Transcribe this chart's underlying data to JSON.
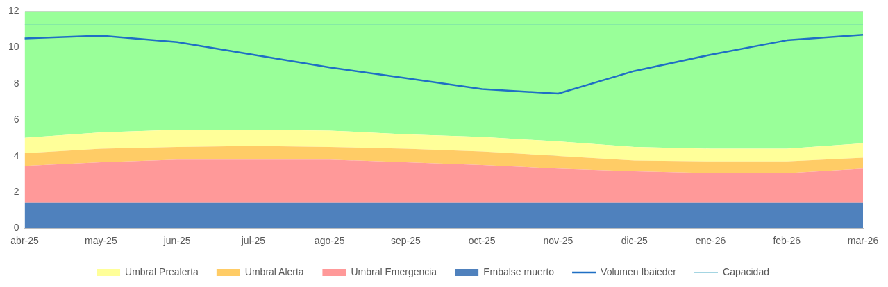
{
  "chart_data": {
    "type": "area",
    "stacked": true,
    "categories": [
      "abr-25",
      "may-25",
      "jun-25",
      "jul-25",
      "ago-25",
      "sep-25",
      "oct-25",
      "nov-25",
      "dic-25",
      "ene-26",
      "feb-26",
      "mar-26"
    ],
    "ylim": [
      0,
      12
    ],
    "yticks": [
      0,
      2,
      4,
      6,
      8,
      10,
      12
    ],
    "grid": "y",
    "legend": "bottom",
    "marker": "none",
    "line_style": "solid",
    "series": [
      {
        "name": "Embalse muerto",
        "color": "#4f81bd",
        "values": [
          1.4,
          1.4,
          1.4,
          1.4,
          1.4,
          1.4,
          1.4,
          1.4,
          1.4,
          1.4,
          1.4,
          1.4
        ]
      },
      {
        "name": "Umbral Emergencia",
        "color": "#ff9999",
        "values": [
          2.05,
          2.25,
          2.4,
          2.4,
          2.4,
          2.25,
          2.1,
          1.9,
          1.75,
          1.65,
          1.65,
          1.9
        ]
      },
      {
        "name": "Umbral Alerta",
        "color": "#ffcc66",
        "values": [
          0.7,
          0.75,
          0.7,
          0.75,
          0.7,
          0.75,
          0.75,
          0.7,
          0.6,
          0.65,
          0.65,
          0.6
        ]
      },
      {
        "name": "Umbral Prealerta",
        "color": "#ffff99",
        "values": [
          0.85,
          0.9,
          0.95,
          0.9,
          0.9,
          0.8,
          0.8,
          0.8,
          0.75,
          0.7,
          0.7,
          0.8
        ]
      },
      {
        "color": "#99ff99",
        "values": [
          7.0,
          6.7,
          6.55,
          6.55,
          6.6,
          6.8,
          6.95,
          7.2,
          7.5,
          7.6,
          7.6,
          7.3
        ]
      },
      {
        "name": "Volumen Ibaieder",
        "type": "line",
        "color": "#1f6fc4",
        "values": [
          10.5,
          10.65,
          10.3,
          9.6,
          8.9,
          8.3,
          7.7,
          7.45,
          8.7,
          9.6,
          10.4,
          10.7
        ]
      },
      {
        "name": "Capacidad",
        "type": "line",
        "color": "#4bacc6",
        "values": [
          11.3,
          11.3,
          11.3,
          11.3,
          11.3,
          11.3,
          11.3,
          11.3,
          11.3,
          11.3,
          11.3,
          11.3
        ]
      }
    ]
  }
}
